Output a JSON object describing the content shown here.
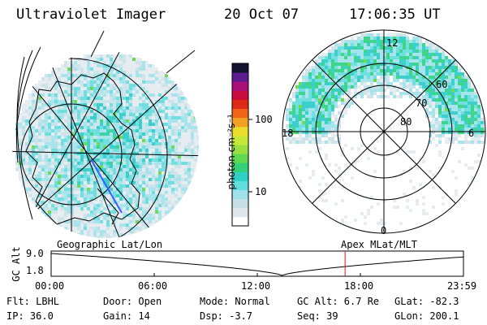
{
  "header": {
    "instrument": "Ultraviolet Imager",
    "date": "20 Oct 07",
    "time": "17:06:35 UT"
  },
  "colorbar": {
    "unit_label": "photon cm⁻²s⁻¹",
    "ticks": [
      "100",
      "10"
    ],
    "colors": [
      "#ffffff",
      "#e0e8ee",
      "#c8dfe8",
      "#9fe0ea",
      "#5edede",
      "#2fd0c8",
      "#33d27a",
      "#60d850",
      "#98e040",
      "#c8e838",
      "#eadc28",
      "#f2a020",
      "#f06418",
      "#e02818",
      "#c80a3c",
      "#aa0f78",
      "#601a90",
      "#141430"
    ]
  },
  "right_map": {
    "mlt_labels": {
      "top": "12",
      "left": "18",
      "right": "6",
      "bottom": "0"
    },
    "lat_labels": [
      "60",
      "70",
      "80"
    ]
  },
  "timeline": {
    "left_caption": "Geographic Lat/Lon",
    "right_caption": "Apex MLat/MLT",
    "ylabel": "GC Alt",
    "yticks": [
      "9.0",
      "1.8"
    ],
    "xticks": [
      "00:00",
      "06:00",
      "12:00",
      "18:00",
      "23:59"
    ],
    "current_time_fraction": 0.7129,
    "marker_color": "#dd1111"
  },
  "info": {
    "flt": "Flt: LBHL",
    "door": "Door: Open",
    "mode": "Mode: Normal",
    "gcalt": "GC Alt: 6.7 Re",
    "glat": "GLat: -82.3",
    "ip": "IP: 36.0",
    "gain": "Gain: 14",
    "dsp": "Dsp:   -3.7",
    "seq": "Seq: 39",
    "glon": "GLon: 200.1"
  }
}
